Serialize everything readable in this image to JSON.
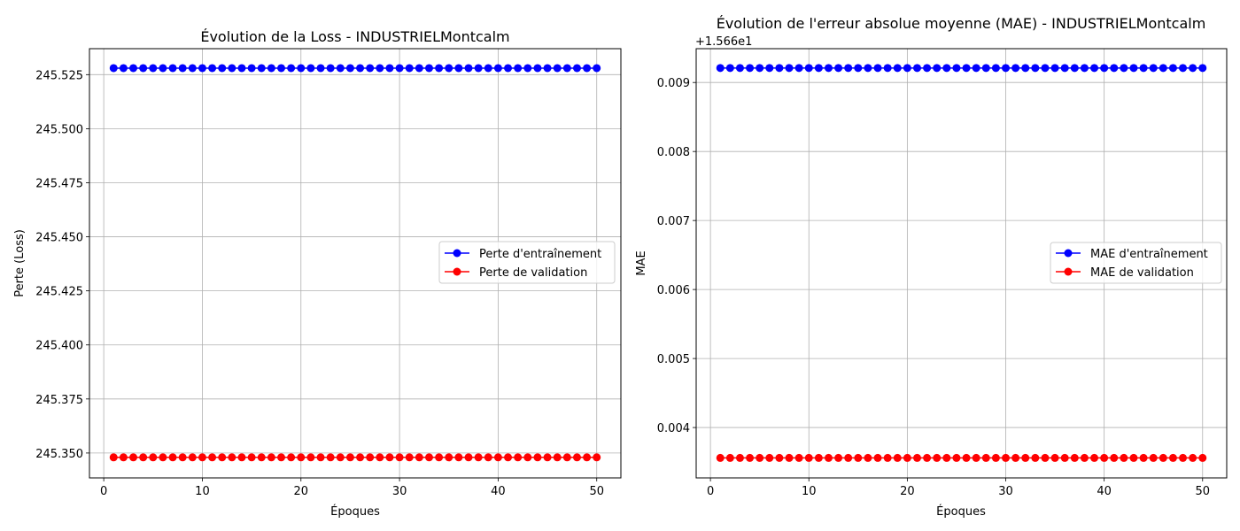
{
  "chart_data": [
    {
      "type": "line",
      "title": "Évolution de la Loss - INDUSTRIELMontcalm",
      "xlabel": "Époques",
      "ylabel": "Perte (Loss)",
      "x": [
        1,
        2,
        3,
        4,
        5,
        6,
        7,
        8,
        9,
        10,
        11,
        12,
        13,
        14,
        15,
        16,
        17,
        18,
        19,
        20,
        21,
        22,
        23,
        24,
        25,
        26,
        27,
        28,
        29,
        30,
        31,
        32,
        33,
        34,
        35,
        36,
        37,
        38,
        39,
        40,
        41,
        42,
        43,
        44,
        45,
        46,
        47,
        48,
        49,
        50
      ],
      "xticks": [
        "0",
        "10",
        "20",
        "30",
        "40",
        "50"
      ],
      "xtick_values": [
        0,
        10,
        20,
        30,
        40,
        50
      ],
      "xlim": [
        -1.45,
        52.45
      ],
      "yticks": [
        "245.350",
        "245.375",
        "245.400",
        "245.425",
        "245.450",
        "245.475",
        "245.500",
        "245.525"
      ],
      "ytick_values": [
        245.35,
        245.375,
        245.4,
        245.425,
        245.45,
        245.475,
        245.5,
        245.525
      ],
      "ylim": [
        245.3385,
        245.537
      ],
      "grid": true,
      "legend_position": "center-right",
      "series": [
        {
          "name": "Perte d'entraînement",
          "color": "#0000ff",
          "marker": "circle",
          "value": 245.528
        },
        {
          "name": "Perte de validation",
          "color": "#ff0000",
          "marker": "circle",
          "value": 245.348
        }
      ]
    },
    {
      "type": "line",
      "title": "Évolution de l'erreur absolue moyenne (MAE) - INDUSTRIELMontcalm",
      "xlabel": "Époques",
      "ylabel": "MAE",
      "y_offset_label": "+1.566e1",
      "x": [
        1,
        2,
        3,
        4,
        5,
        6,
        7,
        8,
        9,
        10,
        11,
        12,
        13,
        14,
        15,
        16,
        17,
        18,
        19,
        20,
        21,
        22,
        23,
        24,
        25,
        26,
        27,
        28,
        29,
        30,
        31,
        32,
        33,
        34,
        35,
        36,
        37,
        38,
        39,
        40,
        41,
        42,
        43,
        44,
        45,
        46,
        47,
        48,
        49,
        50
      ],
      "xticks": [
        "0",
        "10",
        "20",
        "30",
        "40",
        "50"
      ],
      "xtick_values": [
        0,
        10,
        20,
        30,
        40,
        50
      ],
      "xlim": [
        -1.45,
        52.45
      ],
      "yticks": [
        "0.004",
        "0.005",
        "0.006",
        "0.007",
        "0.008",
        "0.009"
      ],
      "ytick_values": [
        0.004,
        0.005,
        0.006,
        0.007,
        0.008,
        0.009
      ],
      "ylim": [
        0.00327,
        0.00949
      ],
      "grid": true,
      "legend_position": "center-right",
      "series": [
        {
          "name": "MAE d'entraînement",
          "color": "#0000ff",
          "marker": "circle",
          "value": 0.00921
        },
        {
          "name": "MAE de validation",
          "color": "#ff0000",
          "marker": "circle",
          "value": 0.00356
        }
      ]
    }
  ]
}
